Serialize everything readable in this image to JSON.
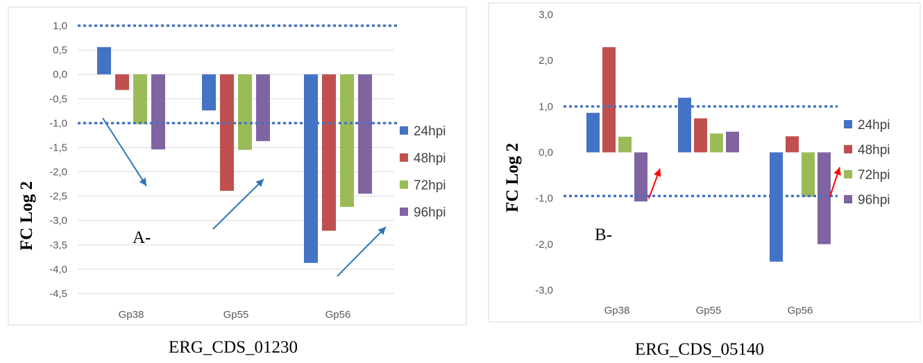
{
  "chart_data": [
    {
      "type": "bar",
      "ylabel": "FC Log 2",
      "xlabel": "",
      "panel_label": "A-",
      "caption": "ERG_CDS_01230",
      "categories": [
        "Gp38",
        "Gp55",
        "Gp56"
      ],
      "ylim": [
        -4.5,
        1.0
      ],
      "yticks": [
        "1,0",
        "0,5",
        "0,0",
        "-0,5",
        "-1,0",
        "-1,5",
        "-2,0",
        "-2,5",
        "-3,0",
        "-3,5",
        "-4,0",
        "-4,5"
      ],
      "threshold_lines": [
        1.0,
        -1.0
      ],
      "legend_position": "right",
      "grid": true,
      "series": [
        {
          "name": "24hpi",
          "color": "#4472C4",
          "values": [
            0.56,
            -0.74,
            -3.87
          ]
        },
        {
          "name": "48hpi",
          "color": "#C0504D",
          "values": [
            -0.32,
            -2.39,
            -3.21
          ]
        },
        {
          "name": "72hpi",
          "color": "#9BBB59",
          "values": [
            -1.02,
            -1.55,
            -2.72
          ]
        },
        {
          "name": "96hpi",
          "color": "#8064A2",
          "values": [
            -1.54,
            -1.37,
            -2.45
          ]
        }
      ],
      "arrow_color": "#2E75B6"
    },
    {
      "type": "bar",
      "ylabel": "FC Log 2",
      "xlabel": "",
      "panel_label": "B-",
      "caption": "ERG_CDS_05140",
      "categories": [
        "Gp38",
        "Gp55",
        "Gp56"
      ],
      "ylim": [
        -3.0,
        3.0
      ],
      "yticks": [
        "3,0",
        "2,0",
        "1,0",
        "0,0",
        "-1,0",
        "-2,0",
        "-3,0"
      ],
      "threshold_lines": [
        1.0,
        -0.95
      ],
      "legend_position": "right",
      "grid": false,
      "series": [
        {
          "name": "24hpi",
          "color": "#4472C4",
          "values": [
            0.86,
            1.19,
            -2.38
          ]
        },
        {
          "name": "48hpi",
          "color": "#C0504D",
          "values": [
            2.29,
            0.74,
            0.35
          ]
        },
        {
          "name": "72hpi",
          "color": "#9BBB59",
          "values": [
            0.34,
            0.41,
            -0.97
          ]
        },
        {
          "name": "96hpi",
          "color": "#8064A2",
          "values": [
            -1.07,
            0.45,
            -2.0
          ]
        }
      ],
      "arrow_color": "#FF0000"
    }
  ]
}
